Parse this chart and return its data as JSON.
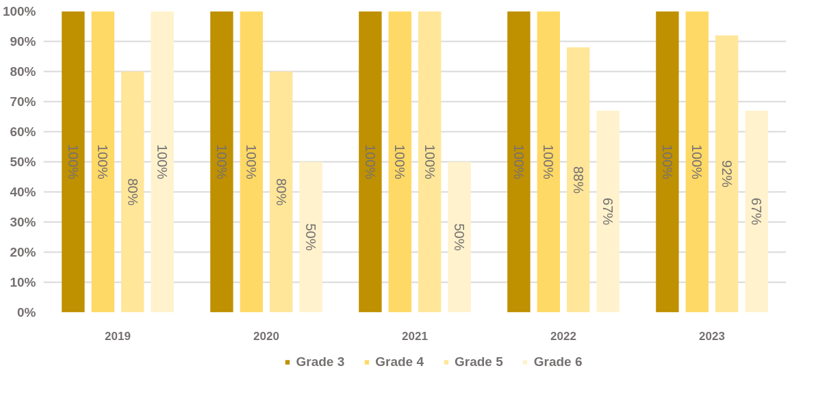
{
  "chart_data": {
    "type": "bar",
    "categories": [
      "2019",
      "2020",
      "2021",
      "2022",
      "2023"
    ],
    "series": [
      {
        "name": "Grade 3",
        "color": "#bf9000",
        "values": [
          100,
          100,
          100,
          100,
          100
        ],
        "value_labels": [
          "100%",
          "100%",
          "100%",
          "100%",
          "100%"
        ]
      },
      {
        "name": "Grade 4",
        "color": "#ffd966",
        "values": [
          100,
          100,
          100,
          100,
          100
        ],
        "value_labels": [
          "100%",
          "100%",
          "100%",
          "100%",
          "100%"
        ]
      },
      {
        "name": "Grade 5",
        "color": "#ffe699",
        "values": [
          80,
          80,
          100,
          88,
          92
        ],
        "value_labels": [
          "80%",
          "80%",
          "100%",
          "88%",
          "92%"
        ]
      },
      {
        "name": "Grade 6",
        "color": "#fff2cc",
        "values": [
          100,
          50,
          50,
          67,
          67
        ],
        "value_labels": [
          "100%",
          "50%",
          "50%",
          "67%",
          "67%"
        ]
      }
    ],
    "ylim": [
      0,
      100
    ],
    "yticks": [
      {
        "value": 0,
        "label": "0%"
      },
      {
        "value": 10,
        "label": "10%"
      },
      {
        "value": 20,
        "label": "20%"
      },
      {
        "value": 30,
        "label": "30%"
      },
      {
        "value": 40,
        "label": "40%"
      },
      {
        "value": 50,
        "label": "50%"
      },
      {
        "value": 60,
        "label": "60%"
      },
      {
        "value": 70,
        "label": "70%"
      },
      {
        "value": 80,
        "label": "80%"
      },
      {
        "value": 90,
        "label": "90%"
      },
      {
        "value": 100,
        "label": "100%"
      }
    ],
    "grid": "y",
    "legend": "bottom"
  }
}
